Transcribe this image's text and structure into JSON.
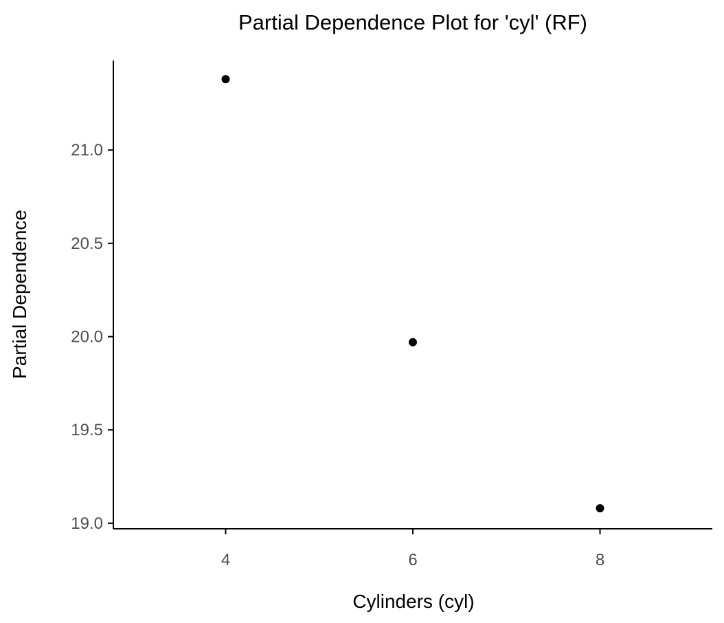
{
  "chart_data": {
    "type": "scatter",
    "title": "Partial Dependence Plot for 'cyl' (RF)",
    "xlabel": "Cylinders (cyl)",
    "ylabel": "Partial Dependence",
    "x": [
      4,
      6,
      8
    ],
    "y": [
      21.38,
      19.97,
      19.08
    ],
    "xlim": [
      2.8,
      9.2
    ],
    "ylim": [
      18.97,
      21.48
    ],
    "xticks": [
      4,
      6,
      8
    ],
    "xtick_labels": [
      "4",
      "6",
      "8"
    ],
    "yticks": [
      19.0,
      19.5,
      20.0,
      20.5,
      21.0
    ],
    "ytick_labels": [
      "19.0",
      "19.5",
      "20.0",
      "20.5",
      "21.0"
    ],
    "grid": false,
    "legend": "none",
    "point_color": "#000000"
  }
}
